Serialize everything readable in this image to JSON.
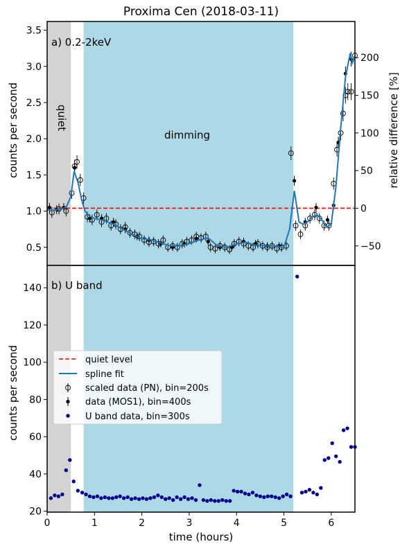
{
  "chart_data": {
    "title": "Proxima Cen (2018-03-11)",
    "colors": {
      "quiet_region": "#d3d3d3",
      "dimming_region": "#add8e6",
      "quiet_level": "#ff0000",
      "spline": "#1f77b4",
      "u_band": "#00008b"
    },
    "shaded_regions": [
      {
        "label": "quiet",
        "x": [
          0.0,
          0.5
        ]
      },
      {
        "label": "dimming",
        "x": [
          0.77,
          5.2
        ]
      }
    ],
    "xlabel": "time (hours)",
    "xlim": [
      0,
      6.5
    ],
    "xticks": [
      0,
      1,
      2,
      3,
      4,
      5,
      6
    ],
    "panels": [
      {
        "type": "scatter",
        "label": "a) 0.2-2keV",
        "ylabel": "counts per second",
        "ylim": [
          0.25,
          3.62
        ],
        "yticks": [
          0.5,
          1.0,
          1.5,
          2.0,
          2.5,
          3.0,
          3.5
        ],
        "y2label": "relative difference [%]",
        "y2ticks": [
          -50,
          0,
          50,
          100,
          150,
          200
        ],
        "quiet_level": 1.04,
        "series": [
          {
            "name": "spline fit",
            "x": [
              0.0,
              0.1,
              0.2,
              0.3,
              0.4,
              0.5,
              0.57,
              0.65,
              0.73,
              0.8,
              0.9,
              1.0,
              1.2,
              1.4,
              1.6,
              1.8,
              2.0,
              2.2,
              2.4,
              2.6,
              2.8,
              3.0,
              3.2,
              3.4,
              3.6,
              3.8,
              4.0,
              4.2,
              4.4,
              4.6,
              4.8,
              5.0,
              5.12,
              5.22,
              5.32,
              5.4,
              5.5,
              5.6,
              5.7,
              5.8,
              5.9,
              6.0,
              6.1,
              6.2,
              6.3,
              6.4,
              6.45,
              6.5
            ],
            "y": [
              1.02,
              1.01,
              1.02,
              1.03,
              1.05,
              1.2,
              1.55,
              1.4,
              1.15,
              1.0,
              0.93,
              0.9,
              0.87,
              0.82,
              0.75,
              0.68,
              0.62,
              0.6,
              0.56,
              0.52,
              0.52,
              0.55,
              0.6,
              0.63,
              0.52,
              0.5,
              0.55,
              0.57,
              0.53,
              0.52,
              0.52,
              0.5,
              0.75,
              1.28,
              0.85,
              0.82,
              0.85,
              0.92,
              0.95,
              0.88,
              0.78,
              0.82,
              1.35,
              2.15,
              2.85,
              3.18,
              3.05,
              3.15
            ]
          },
          {
            "name": "scaled data (PN), bin=200s",
            "x": [
              0.1,
              0.25,
              0.4,
              0.52,
              0.58,
              0.63,
              0.7,
              0.77,
              0.85,
              0.95,
              1.05,
              1.15,
              1.25,
              1.35,
              1.45,
              1.55,
              1.65,
              1.75,
              1.85,
              1.95,
              2.05,
              2.15,
              2.25,
              2.35,
              2.45,
              2.55,
              2.65,
              2.75,
              2.85,
              2.95,
              3.05,
              3.15,
              3.25,
              3.35,
              3.45,
              3.55,
              3.65,
              3.75,
              3.85,
              3.95,
              4.05,
              4.15,
              4.25,
              4.35,
              4.45,
              4.55,
              4.65,
              4.75,
              4.85,
              4.95,
              5.05,
              5.15,
              5.25,
              5.35,
              5.45,
              5.55,
              5.65,
              5.75,
              5.85,
              5.95,
              6.05,
              6.12,
              6.2,
              6.25,
              6.3,
              6.35,
              6.42,
              6.5
            ],
            "y": [
              0.98,
              1.03,
              1.0,
              1.25,
              1.62,
              1.68,
              1.43,
              1.18,
              0.92,
              0.88,
              0.95,
              0.85,
              0.9,
              0.8,
              0.82,
              0.75,
              0.78,
              0.7,
              0.68,
              0.65,
              0.6,
              0.57,
              0.58,
              0.55,
              0.6,
              0.5,
              0.52,
              0.5,
              0.55,
              0.58,
              0.6,
              0.65,
              0.63,
              0.65,
              0.5,
              0.48,
              0.52,
              0.5,
              0.47,
              0.55,
              0.58,
              0.55,
              0.52,
              0.5,
              0.55,
              0.52,
              0.5,
              0.52,
              0.48,
              0.5,
              0.52,
              1.8,
              0.8,
              0.68,
              0.8,
              0.9,
              0.95,
              0.9,
              0.8,
              0.8,
              1.38,
              1.85,
              2.08,
              2.35,
              2.6,
              2.65,
              2.65,
              3.15
            ]
          },
          {
            "name": "data (MOS1), bin=400s",
            "x": [
              0.05,
              0.2,
              0.35,
              0.58,
              0.9,
              1.15,
              1.4,
              1.65,
              1.9,
              2.15,
              2.4,
              2.65,
              2.9,
              3.15,
              3.4,
              3.65,
              3.9,
              4.15,
              4.4,
              4.65,
              4.9,
              5.22,
              5.45,
              5.68,
              5.92,
              6.05,
              6.15,
              6.3,
              6.42
            ],
            "y": [
              1.05,
              1.02,
              1.05,
              1.6,
              0.9,
              0.9,
              0.85,
              0.75,
              0.65,
              0.6,
              0.55,
              0.5,
              0.55,
              0.62,
              0.58,
              0.5,
              0.5,
              0.58,
              0.55,
              0.52,
              0.52,
              1.42,
              0.85,
              1.05,
              0.88,
              1.08,
              1.95,
              2.9,
              3.1
            ]
          }
        ]
      },
      {
        "type": "scatter",
        "label": "b) U band",
        "ylabel": "counts per second",
        "ylim": [
          19.5,
          152
        ],
        "yticks": [
          20,
          40,
          60,
          80,
          100,
          120,
          140
        ],
        "series": [
          {
            "name": "U band data, bin=300s",
            "x": [
              0.08,
              0.16,
              0.24,
              0.32,
              0.4,
              0.48,
              0.56,
              0.65,
              0.74,
              0.82,
              0.9,
              0.98,
              1.06,
              1.14,
              1.22,
              1.3,
              1.38,
              1.46,
              1.54,
              1.62,
              1.7,
              1.78,
              1.86,
              1.94,
              2.02,
              2.1,
              2.18,
              2.26,
              2.34,
              2.42,
              2.5,
              2.58,
              2.66,
              2.74,
              2.82,
              2.9,
              2.98,
              3.06,
              3.14,
              3.22,
              3.3,
              3.38,
              3.46,
              3.54,
              3.62,
              3.7,
              3.78,
              3.86,
              3.94,
              4.02,
              4.1,
              4.18,
              4.26,
              4.34,
              4.42,
              4.5,
              4.58,
              4.66,
              4.74,
              4.82,
              4.9,
              4.98,
              5.06,
              5.14,
              5.28,
              5.38,
              5.46,
              5.54,
              5.62,
              5.7,
              5.78,
              5.86,
              5.94,
              6.02,
              6.1,
              6.18,
              6.26,
              6.34,
              6.42,
              6.5
            ],
            "y": [
              27,
              28.5,
              28,
              29,
              42,
              47.5,
              36,
              31,
              30,
              29,
              28,
              27.5,
              28,
              27,
              27.5,
              27,
              27,
              27.5,
              28,
              27,
              27.5,
              26.5,
              27,
              26.5,
              27,
              26.5,
              27,
              27.5,
              28.5,
              27.5,
              26.5,
              27,
              26,
              27.5,
              26.5,
              27.5,
              26.5,
              27,
              26,
              34,
              26,
              25.5,
              26,
              25.5,
              25.5,
              26,
              25.5,
              25.5,
              31,
              30.5,
              30.5,
              29.5,
              29,
              30,
              28.5,
              28,
              27.5,
              28,
              28,
              27.5,
              27,
              28,
              29,
              28,
              146,
              30,
              30.5,
              31.5,
              30,
              29,
              32.5,
              47.5,
              48.5,
              56.5,
              49.5,
              46.5,
              63.5,
              64.5,
              54.5,
              54.5
            ]
          }
        ]
      }
    ],
    "legend": {
      "placement": "center-left",
      "entries": [
        "quiet level",
        "spline fit",
        "scaled data (PN), bin=200s",
        "data (MOS1), bin=400s",
        "U band data, bin=300s"
      ]
    }
  }
}
